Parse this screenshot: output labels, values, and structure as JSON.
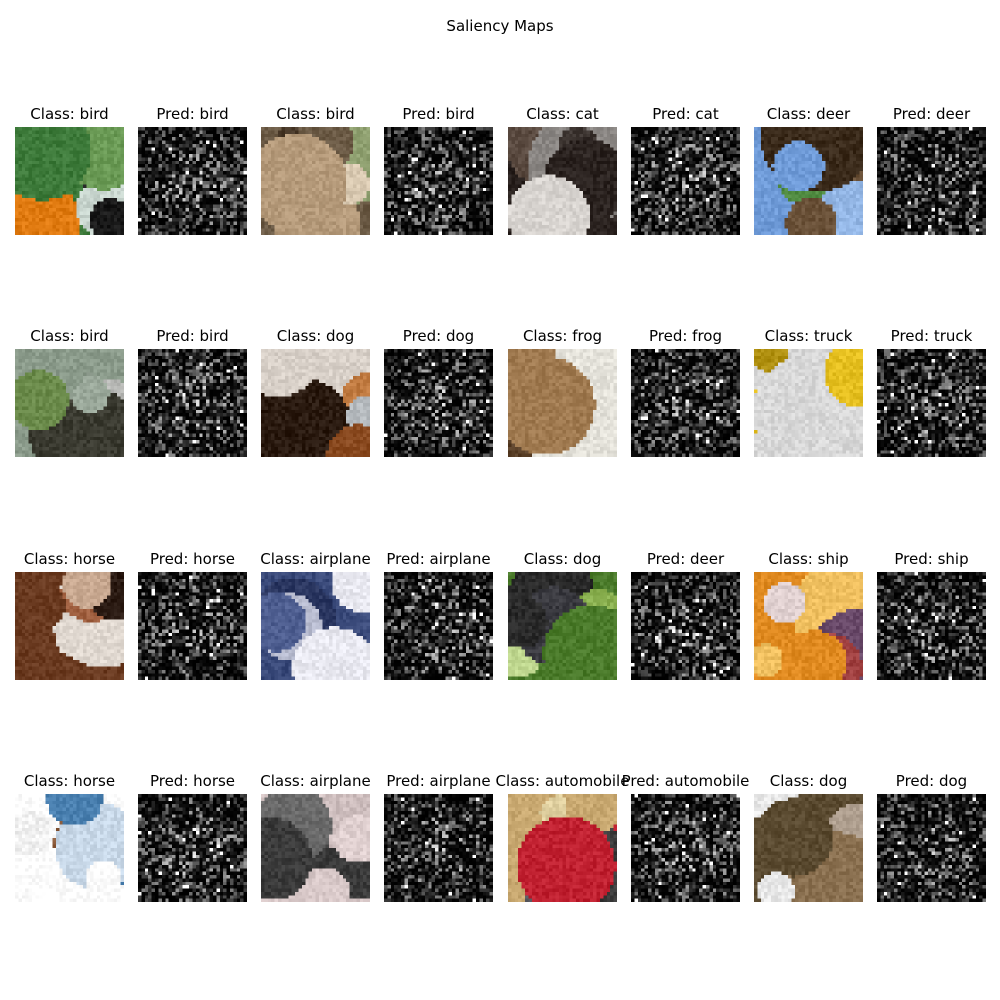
{
  "title": "Saliency Maps",
  "rows": [
    [
      {
        "kind": "image",
        "label": "Class: bird",
        "palette": [
          "#3d7a3a",
          "#1a1a1a",
          "#e07a10",
          "#c9d6cf",
          "#6a9a55"
        ]
      },
      {
        "kind": "saliency",
        "label": "Pred: bird"
      },
      {
        "kind": "image",
        "label": "Class: bird",
        "palette": [
          "#6b5a45",
          "#b59a7a",
          "#8fa070",
          "#d8c8b0",
          "#4a3a2a"
        ]
      },
      {
        "kind": "saliency",
        "label": "Pred: bird"
      },
      {
        "kind": "image",
        "label": "Class: cat",
        "palette": [
          "#2b2320",
          "#d8d4d0",
          "#5a4a40",
          "#8a8683",
          "#3e3632"
        ]
      },
      {
        "kind": "saliency",
        "label": "Pred: cat"
      },
      {
        "kind": "image",
        "label": "Class: deer",
        "palette": [
          "#6f9bd8",
          "#6a5138",
          "#4f8a40",
          "#94b7e6",
          "#3a2a1a"
        ]
      },
      {
        "kind": "saliency",
        "label": "Pred: deer"
      }
    ],
    [
      {
        "kind": "image",
        "label": "Class: bird",
        "palette": [
          "#8a9a8a",
          "#6a8a4a",
          "#b7b8b5",
          "#3a3a30",
          "#9aa89a"
        ]
      },
      {
        "kind": "saliency",
        "label": "Pred: bird"
      },
      {
        "kind": "image",
        "label": "Class: dog",
        "palette": [
          "#8a4a20",
          "#d8d0c8",
          "#c07a40",
          "#2a1a10",
          "#b7bcc0"
        ]
      },
      {
        "kind": "saliency",
        "label": "Pred: dog"
      },
      {
        "kind": "image",
        "label": "Class: frog",
        "palette": [
          "#e4e2da",
          "#a07a50",
          "#c8a478",
          "#5a4028",
          "#d8d4cc"
        ]
      },
      {
        "kind": "saliency",
        "label": "Pred: frog"
      },
      {
        "kind": "image",
        "label": "Class: truck",
        "palette": [
          "#d8d8d8",
          "#e6c020",
          "#2a2a2a",
          "#f0f0f0",
          "#b09010"
        ]
      },
      {
        "kind": "saliency",
        "label": "Pred: truck"
      }
    ],
    [
      {
        "kind": "image",
        "label": "Class: horse",
        "palette": [
          "#6a3a20",
          "#e0d8d0",
          "#a06040",
          "#2a1a12",
          "#c8a890"
        ]
      },
      {
        "kind": "saliency",
        "label": "Pred: horse"
      },
      {
        "kind": "image",
        "label": "Class: airplane",
        "palette": [
          "#3a4a7a",
          "#e8e8f0",
          "#2a3660",
          "#b8bcd0",
          "#4e5e90"
        ]
      },
      {
        "kind": "saliency",
        "label": "Pred: airplane"
      },
      {
        "kind": "image",
        "label": "Class: dog",
        "palette": [
          "#4a7a2a",
          "#2a2a2a",
          "#8ab050",
          "#c0d890",
          "#3a3a40"
        ]
      },
      {
        "kind": "saliency",
        "label": "Pred: deer"
      },
      {
        "kind": "image",
        "label": "Class: ship",
        "palette": [
          "#e08a20",
          "#f0c060",
          "#6a4a6a",
          "#e0d0d0",
          "#a04040"
        ]
      },
      {
        "kind": "saliency",
        "label": "Pred: ship"
      }
    ],
    [
      {
        "kind": "image",
        "label": "Class: horse",
        "palette": [
          "#ffffff",
          "#4a80b0",
          "#8a5a3a",
          "#f0f0f0",
          "#c8d8e8"
        ]
      },
      {
        "kind": "saliency",
        "label": "Pred: horse"
      },
      {
        "kind": "image",
        "label": "Class: airplane",
        "palette": [
          "#d8c8c8",
          "#3a3a3a",
          "#cdbdbd",
          "#6a6a6a",
          "#e0d0d0"
        ]
      },
      {
        "kind": "saliency",
        "label": "Pred: airplane"
      },
      {
        "kind": "image",
        "label": "Class: automobile",
        "palette": [
          "#c8a870",
          "#c02030",
          "#e0d0a0",
          "#5a5a60",
          "#3a3a3a"
        ]
      },
      {
        "kind": "saliency",
        "label": "Pred: automobile"
      },
      {
        "kind": "image",
        "label": "Class: dog",
        "palette": [
          "#5a4a30",
          "#e8e8e8",
          "#2a2a2a",
          "#b0a090",
          "#8a7050"
        ]
      },
      {
        "kind": "saliency",
        "label": "Pred: dog"
      }
    ]
  ]
}
